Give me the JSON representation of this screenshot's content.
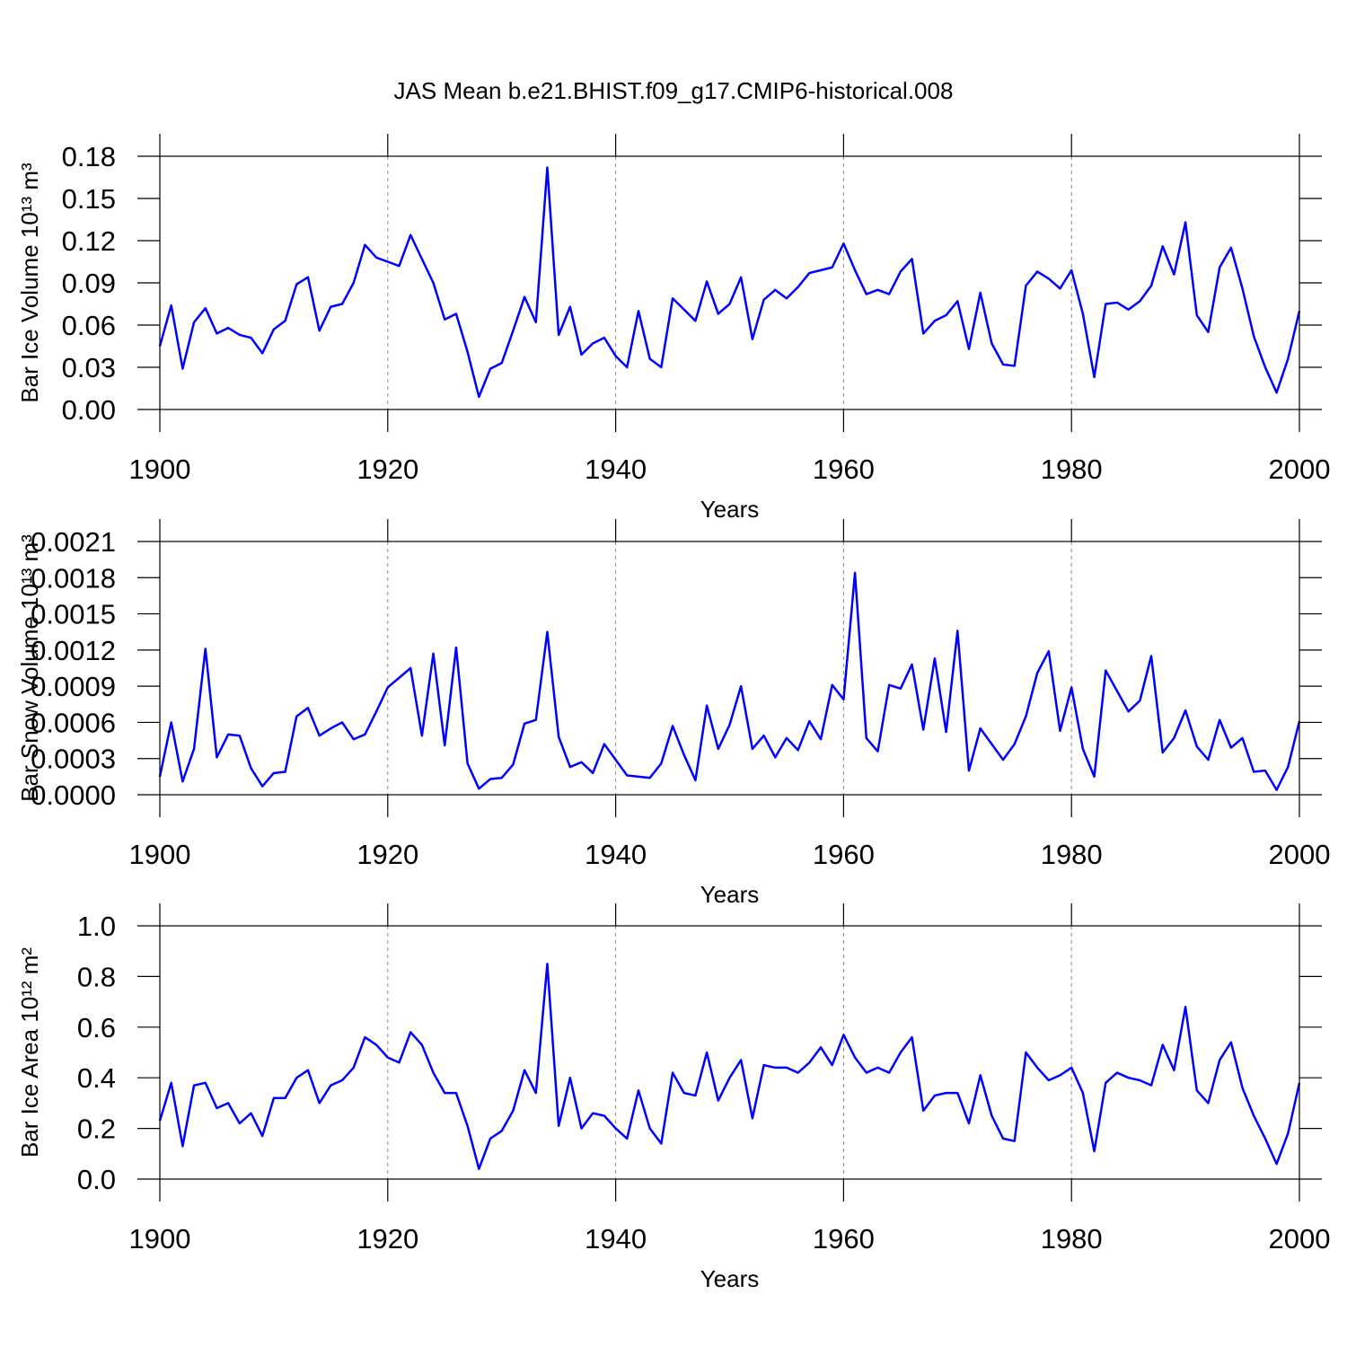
{
  "title": "JAS Mean b.e21.BHIST.f09_g17.CMIP6-historical.008",
  "chart_data": [
    {
      "type": "line",
      "ylabel": "Bar Ice Volume 10¹³ m³",
      "xlabel": "Years",
      "color": "#0000ff",
      "grid": "x",
      "x": [
        1900,
        1901,
        1902,
        1903,
        1904,
        1905,
        1906,
        1907,
        1908,
        1909,
        1910,
        1911,
        1912,
        1913,
        1914,
        1915,
        1916,
        1917,
        1918,
        1919,
        1920,
        1921,
        1922,
        1923,
        1924,
        1925,
        1926,
        1927,
        1928,
        1929,
        1930,
        1931,
        1932,
        1933,
        1934,
        1935,
        1936,
        1937,
        1938,
        1939,
        1940,
        1941,
        1942,
        1943,
        1944,
        1945,
        1946,
        1947,
        1948,
        1949,
        1950,
        1951,
        1952,
        1953,
        1954,
        1955,
        1956,
        1957,
        1958,
        1959,
        1960,
        1961,
        1962,
        1963,
        1964,
        1965,
        1966,
        1967,
        1968,
        1969,
        1970,
        1971,
        1972,
        1973,
        1974,
        1975,
        1976,
        1977,
        1978,
        1979,
        1980,
        1981,
        1982,
        1983,
        1984,
        1985,
        1986,
        1987,
        1988,
        1989,
        1990,
        1991,
        1992,
        1993,
        1994,
        1995,
        1996,
        1997,
        1998,
        1999,
        2000
      ],
      "values": [
        0.045,
        0.074,
        0.029,
        0.062,
        0.072,
        0.054,
        0.058,
        0.053,
        0.051,
        0.04,
        0.057,
        0.063,
        0.089,
        0.094,
        0.056,
        0.073,
        0.075,
        0.09,
        0.117,
        0.108,
        0.105,
        0.102,
        0.124,
        0.107,
        0.09,
        0.064,
        0.068,
        0.041,
        0.009,
        0.029,
        0.033,
        0.056,
        0.08,
        0.062,
        0.172,
        0.053,
        0.073,
        0.039,
        0.047,
        0.051,
        0.038,
        0.03,
        0.07,
        0.036,
        0.03,
        0.079,
        0.071,
        0.063,
        0.091,
        0.068,
        0.075,
        0.094,
        0.05,
        0.078,
        0.085,
        0.079,
        0.087,
        0.097,
        0.099,
        0.101,
        0.118,
        0.099,
        0.082,
        0.085,
        0.082,
        0.098,
        0.107,
        0.054,
        0.063,
        0.067,
        0.077,
        0.043,
        0.083,
        0.047,
        0.032,
        0.031,
        0.088,
        0.098,
        0.093,
        0.086,
        0.099,
        0.068,
        0.023,
        0.075,
        0.076,
        0.071,
        0.077,
        0.088,
        0.116,
        0.096,
        0.133,
        0.067,
        0.055,
        0.101,
        0.115,
        0.086,
        0.052,
        0.03,
        0.012,
        0.036,
        0.07
      ],
      "xlim": [
        1900,
        2000
      ],
      "xticks": [
        1900,
        1920,
        1940,
        1960,
        1980,
        2000
      ],
      "ylim": [
        0,
        0.18
      ],
      "yticks": [
        {
          "value": 0,
          "label": "0.00"
        },
        0.03,
        0.06,
        0.09,
        0.12,
        0.15,
        0.18
      ]
    },
    {
      "type": "line",
      "ylabel": "Bar Snow Volume 10¹³ m³",
      "xlabel": "Years",
      "color": "#0000ff",
      "grid": "x",
      "x": [
        1900,
        1901,
        1902,
        1903,
        1904,
        1905,
        1906,
        1907,
        1908,
        1909,
        1910,
        1911,
        1912,
        1913,
        1914,
        1915,
        1916,
        1917,
        1918,
        1919,
        1920,
        1921,
        1922,
        1923,
        1924,
        1925,
        1926,
        1927,
        1928,
        1929,
        1930,
        1931,
        1932,
        1933,
        1934,
        1935,
        1936,
        1937,
        1938,
        1939,
        1940,
        1941,
        1942,
        1943,
        1944,
        1945,
        1946,
        1947,
        1948,
        1949,
        1950,
        1951,
        1952,
        1953,
        1954,
        1955,
        1956,
        1957,
        1958,
        1959,
        1960,
        1961,
        1962,
        1963,
        1964,
        1965,
        1966,
        1967,
        1968,
        1969,
        1970,
        1971,
        1972,
        1973,
        1974,
        1975,
        1976,
        1977,
        1978,
        1979,
        1980,
        1981,
        1982,
        1983,
        1984,
        1985,
        1986,
        1987,
        1988,
        1989,
        1990,
        1991,
        1992,
        1993,
        1994,
        1995,
        1996,
        1997,
        1998,
        1999,
        2000
      ],
      "values": [
        0.00015,
        0.0006,
        0.00011,
        0.00038,
        0.00121,
        0.00031,
        0.0005,
        0.00049,
        0.00022,
        7e-05,
        0.00018,
        0.00019,
        0.00065,
        0.00072,
        0.00049,
        0.00055,
        0.0006,
        0.00046,
        0.0005,
        0.00069,
        0.00089,
        0.00097,
        0.00105,
        0.00049,
        0.00117,
        0.00041,
        0.00122,
        0.00026,
        5e-05,
        0.00013,
        0.00014,
        0.00025,
        0.00059,
        0.00062,
        0.00135,
        0.00048,
        0.00023,
        0.00027,
        0.00018,
        0.00042,
        0.00029,
        0.00016,
        0.00015,
        0.00014,
        0.00026,
        0.00057,
        0.00033,
        0.00012,
        0.00074,
        0.00038,
        0.00058,
        0.0009,
        0.00038,
        0.00049,
        0.00031,
        0.00047,
        0.00037,
        0.00061,
        0.00046,
        0.00091,
        0.00079,
        0.00184,
        0.00047,
        0.00036,
        0.00091,
        0.00088,
        0.00108,
        0.00054,
        0.00113,
        0.00052,
        0.00136,
        0.0002,
        0.00055,
        0.00042,
        0.00029,
        0.00042,
        0.00065,
        0.00101,
        0.00119,
        0.00053,
        0.00089,
        0.00038,
        0.00015,
        0.00103,
        0.00086,
        0.00069,
        0.00078,
        0.00115,
        0.00035,
        0.00047,
        0.0007,
        0.0004,
        0.00029,
        0.00062,
        0.00039,
        0.00047,
        0.00019,
        0.0002,
        4e-05,
        0.00023,
        0.00061
      ],
      "xlim": [
        1900,
        2000
      ],
      "xticks": [
        1900,
        1920,
        1940,
        1960,
        1980,
        2000
      ],
      "ylim": [
        0,
        0.0021
      ],
      "yticks": [
        {
          "value": 0,
          "label": "0.0000"
        },
        0.0003,
        0.0006,
        0.0009,
        0.0012,
        0.0015,
        0.0018,
        0.0021
      ]
    },
    {
      "type": "line",
      "ylabel": "Bar Ice Area 10¹² m²",
      "xlabel": "Years",
      "color": "#0000ff",
      "grid": "x",
      "x": [
        1900,
        1901,
        1902,
        1903,
        1904,
        1905,
        1906,
        1907,
        1908,
        1909,
        1910,
        1911,
        1912,
        1913,
        1914,
        1915,
        1916,
        1917,
        1918,
        1919,
        1920,
        1921,
        1922,
        1923,
        1924,
        1925,
        1926,
        1927,
        1928,
        1929,
        1930,
        1931,
        1932,
        1933,
        1934,
        1935,
        1936,
        1937,
        1938,
        1939,
        1940,
        1941,
        1942,
        1943,
        1944,
        1945,
        1946,
        1947,
        1948,
        1949,
        1950,
        1951,
        1952,
        1953,
        1954,
        1955,
        1956,
        1957,
        1958,
        1959,
        1960,
        1961,
        1962,
        1963,
        1964,
        1965,
        1966,
        1967,
        1968,
        1969,
        1970,
        1971,
        1972,
        1973,
        1974,
        1975,
        1976,
        1977,
        1978,
        1979,
        1980,
        1981,
        1982,
        1983,
        1984,
        1985,
        1986,
        1987,
        1988,
        1989,
        1990,
        1991,
        1992,
        1993,
        1994,
        1995,
        1996,
        1997,
        1998,
        1999,
        2000
      ],
      "values": [
        0.23,
        0.38,
        0.13,
        0.37,
        0.38,
        0.28,
        0.3,
        0.22,
        0.26,
        0.17,
        0.32,
        0.32,
        0.4,
        0.43,
        0.3,
        0.37,
        0.39,
        0.44,
        0.56,
        0.53,
        0.48,
        0.46,
        0.58,
        0.53,
        0.42,
        0.34,
        0.34,
        0.21,
        0.04,
        0.16,
        0.19,
        0.27,
        0.43,
        0.34,
        0.85,
        0.21,
        0.4,
        0.2,
        0.26,
        0.25,
        0.2,
        0.16,
        0.35,
        0.2,
        0.14,
        0.42,
        0.34,
        0.33,
        0.5,
        0.31,
        0.4,
        0.47,
        0.24,
        0.45,
        0.44,
        0.44,
        0.42,
        0.46,
        0.52,
        0.45,
        0.57,
        0.48,
        0.42,
        0.44,
        0.42,
        0.5,
        0.56,
        0.27,
        0.33,
        0.34,
        0.34,
        0.22,
        0.41,
        0.25,
        0.16,
        0.15,
        0.5,
        0.44,
        0.39,
        0.41,
        0.44,
        0.34,
        0.11,
        0.38,
        0.42,
        0.4,
        0.39,
        0.37,
        0.53,
        0.43,
        0.68,
        0.35,
        0.3,
        0.47,
        0.54,
        0.36,
        0.25,
        0.16,
        0.06,
        0.18,
        0.38
      ],
      "xlim": [
        1900,
        2000
      ],
      "xticks": [
        1900,
        1920,
        1940,
        1960,
        1980,
        2000
      ],
      "ylim": [
        0,
        1.0
      ],
      "yticks": [
        {
          "value": 0,
          "label": "0.0"
        },
        0.2,
        0.4,
        0.6,
        0.8,
        {
          "value": 1,
          "label": "1.0"
        }
      ]
    }
  ]
}
